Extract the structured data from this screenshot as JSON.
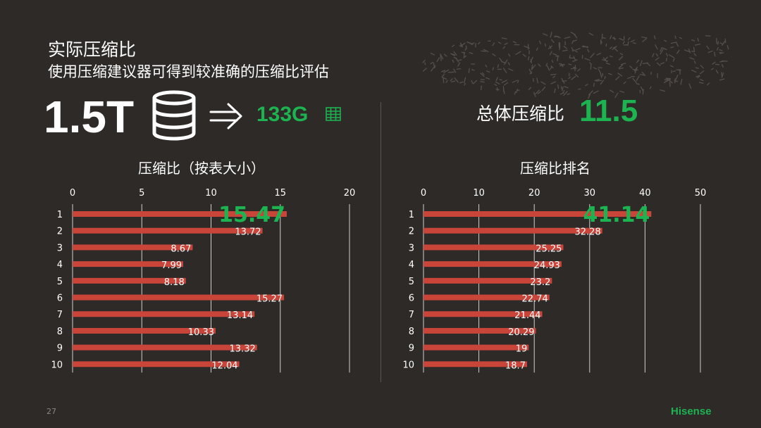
{
  "header": {
    "title": "实际压缩比",
    "subtitle": "使用压缩建议器可得到较准确的压缩比评估"
  },
  "summary": {
    "original_size": "1.5T",
    "compressed_size": "133G",
    "overall_label": "总体压缩比",
    "overall_value": "11.5"
  },
  "colors": {
    "bar": "#c9453a",
    "accent_green": "#1db350",
    "background": "#2d2a28",
    "gridline": "#cfcfcf"
  },
  "icons": [
    "database-icon",
    "double-arrow-icon",
    "table-icon"
  ],
  "chart_data": [
    {
      "type": "bar",
      "orientation": "horizontal",
      "title": "压缩比（按表大小）",
      "categories": [
        "1",
        "2",
        "3",
        "4",
        "5",
        "6",
        "7",
        "8",
        "9",
        "10"
      ],
      "values": [
        15.47,
        13.72,
        8.67,
        7.99,
        8.18,
        15.27,
        13.14,
        10.33,
        13.32,
        12.04
      ],
      "labels": [
        "15.47",
        "13.72",
        "8.67",
        "7.99",
        "8.18",
        "15.27",
        "13.14",
        "10.33",
        "13.32",
        "12.04"
      ],
      "ticks": [
        "0",
        "5",
        "10",
        "15",
        "20"
      ],
      "xlim": [
        0,
        20
      ],
      "highlight_index": 0,
      "grid": true
    },
    {
      "type": "bar",
      "orientation": "horizontal",
      "title": "压缩比排名",
      "categories": [
        "1",
        "2",
        "3",
        "4",
        "5",
        "6",
        "7",
        "8",
        "9",
        "10"
      ],
      "values": [
        41.14,
        32.28,
        25.25,
        24.93,
        23.2,
        22.74,
        21.44,
        20.29,
        19,
        18.7
      ],
      "labels": [
        "41.14",
        "32.28",
        "25.25",
        "24.93",
        "23.2",
        "22.74",
        "21.44",
        "20.29",
        "19",
        "18.7"
      ],
      "ticks": [
        "0",
        "10",
        "20",
        "30",
        "40",
        "50"
      ],
      "xlim": [
        0,
        50
      ],
      "highlight_index": 0,
      "grid": true
    }
  ],
  "footer": {
    "page_number": "27",
    "brand": "Hisense"
  }
}
